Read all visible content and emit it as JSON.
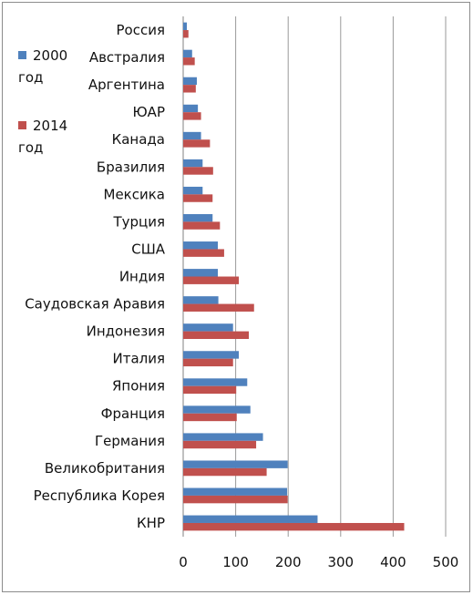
{
  "chart_data": {
    "type": "bar",
    "orientation": "horizontal",
    "categories": [
      "Россия",
      "Австралия",
      "Аргентина",
      "ЮАР",
      "Канада",
      "Бразилия",
      "Мексика",
      "Турция",
      "США",
      "Индия",
      "Саудовская Аравия",
      "Индонезия",
      "Италия",
      "Япония",
      "Франция",
      "Германия",
      "Великобритания",
      "Республика Корея",
      "КНР"
    ],
    "series": [
      {
        "name": "2000 год",
        "color": "#4f81bd",
        "values": [
          7,
          17,
          26,
          28,
          34,
          37,
          37,
          56,
          66,
          66,
          67,
          95,
          106,
          122,
          128,
          152,
          199,
          198,
          256
        ]
      },
      {
        "name": "2014 год",
        "color": "#c0504d",
        "values": [
          10,
          22,
          24,
          34,
          51,
          57,
          56,
          70,
          78,
          106,
          135,
          125,
          95,
          101,
          102,
          139,
          159,
          199,
          421
        ]
      }
    ],
    "xlim": [
      0,
      500
    ],
    "xticks": [
      "0",
      "100",
      "200",
      "300",
      "400",
      "500"
    ],
    "grid": "vertical",
    "legend": "left"
  }
}
